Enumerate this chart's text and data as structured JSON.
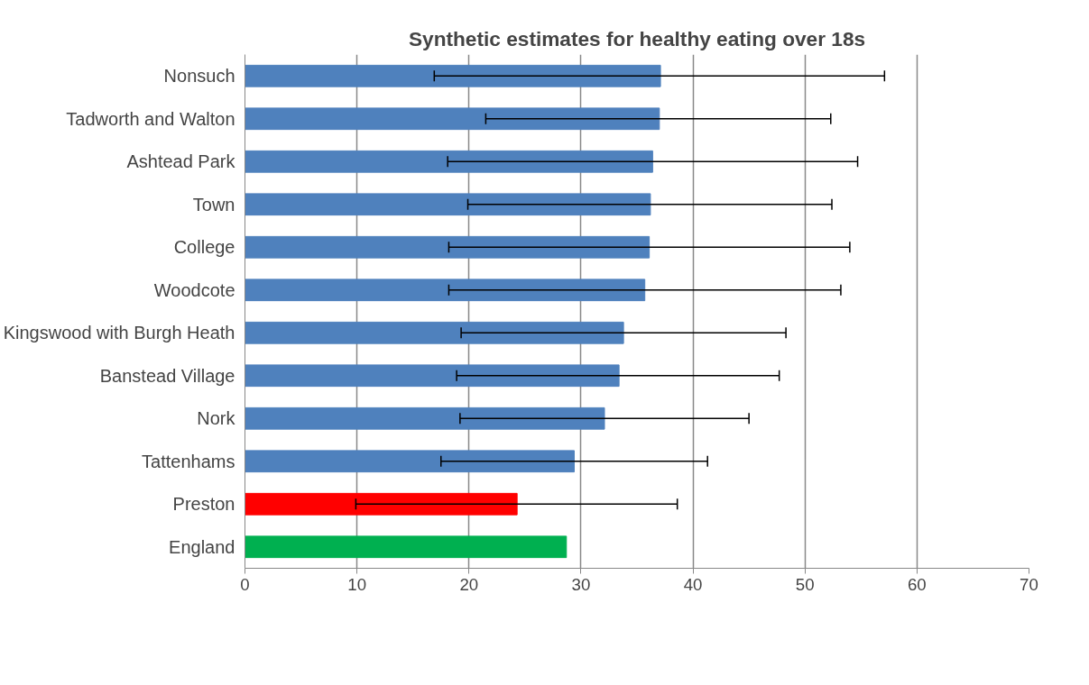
{
  "chart_data": {
    "type": "bar",
    "orientation": "horizontal",
    "title": "Synthetic estimates for healthy eating over 18s",
    "categories": [
      "Nonsuch",
      "Tadworth and Walton",
      "Ashtead Park",
      "Town",
      "College",
      "Woodcote",
      "Kingswood with Burgh Heath",
      "Banstead Village",
      "Nork",
      "Tattenhams",
      "Preston",
      "England"
    ],
    "values": [
      37.1,
      37.0,
      36.4,
      36.2,
      36.1,
      35.7,
      33.8,
      33.4,
      32.1,
      29.4,
      24.3,
      28.7
    ],
    "colors": [
      "#4f81bd",
      "#4f81bd",
      "#4f81bd",
      "#4f81bd",
      "#4f81bd",
      "#4f81bd",
      "#4f81bd",
      "#4f81bd",
      "#4f81bd",
      "#4f81bd",
      "#ff0000",
      "#00b050"
    ],
    "errors": [
      [
        16.9,
        57.1
      ],
      [
        21.5,
        52.3
      ],
      [
        18.1,
        54.7
      ],
      [
        19.9,
        52.4
      ],
      [
        18.2,
        54.0
      ],
      [
        18.2,
        53.2
      ],
      [
        19.3,
        48.3
      ],
      [
        18.9,
        47.7
      ],
      [
        19.2,
        45.0
      ],
      [
        17.5,
        41.3
      ],
      [
        9.9,
        38.6
      ],
      null
    ],
    "xlim": [
      0,
      70
    ],
    "xticks": [
      0,
      10,
      20,
      30,
      40,
      50,
      60,
      70
    ],
    "grid": "x"
  }
}
